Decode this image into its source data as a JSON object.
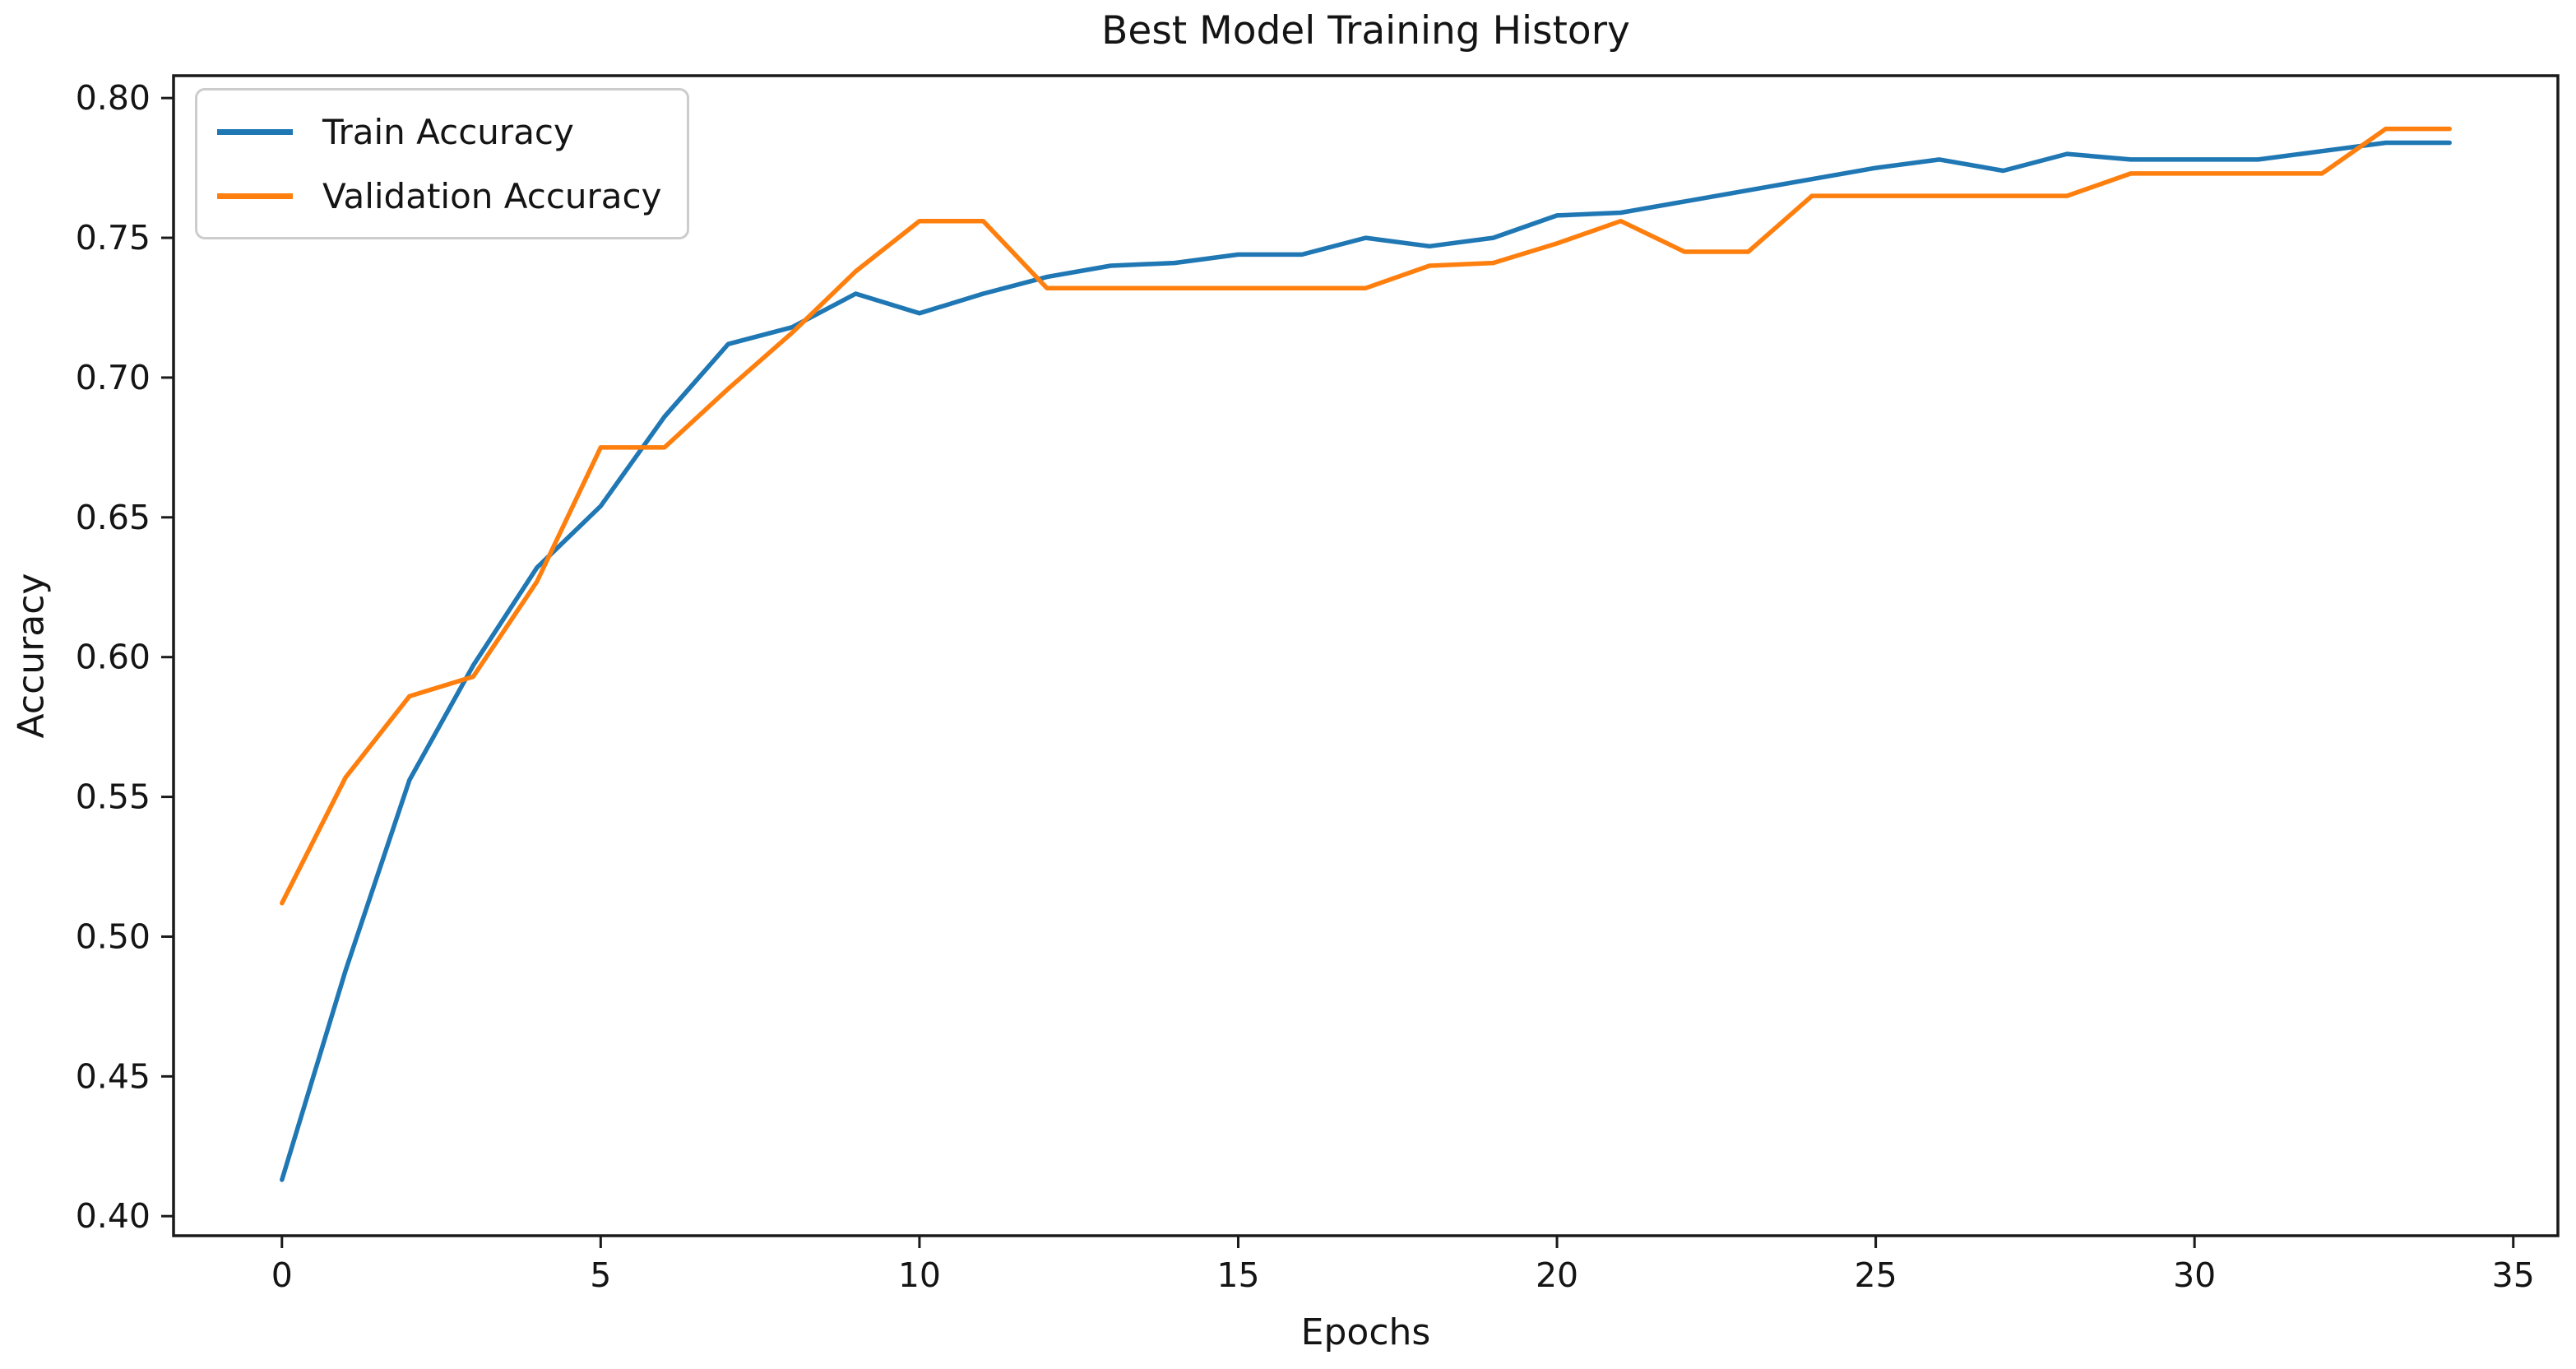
{
  "figure": {
    "title": "Best Model Training History",
    "xlabel": "Epochs",
    "ylabel": "Accuracy"
  },
  "legend": {
    "entries": [
      {
        "label": "Train Accuracy",
        "color": "#1f77b4"
      },
      {
        "label": "Validation Accuracy",
        "color": "#ff7f0e"
      }
    ]
  },
  "chart_data": {
    "type": "line",
    "title": "Best Model Training History",
    "xlabel": "Epochs",
    "ylabel": "Accuracy",
    "grid": false,
    "legend_position": "upper left",
    "xlim": [
      -1.7,
      35.7
    ],
    "ylim": [
      0.393,
      0.808
    ],
    "xticks": [
      0,
      5,
      10,
      15,
      20,
      25,
      30,
      35
    ],
    "yticks": [
      0.4,
      0.45,
      0.5,
      0.55,
      0.6,
      0.65,
      0.7,
      0.75,
      0.8
    ],
    "x": [
      0,
      1,
      2,
      3,
      4,
      5,
      6,
      7,
      8,
      9,
      10,
      11,
      12,
      13,
      14,
      15,
      16,
      17,
      18,
      19,
      20,
      21,
      22,
      23,
      24,
      25,
      26,
      27,
      28,
      29,
      30,
      31,
      32,
      33,
      34
    ],
    "series": [
      {
        "name": "Train Accuracy",
        "color": "#1f77b4",
        "values": [
          0.413,
          0.488,
          0.556,
          0.597,
          0.632,
          0.654,
          0.686,
          0.712,
          0.718,
          0.73,
          0.723,
          0.73,
          0.736,
          0.74,
          0.741,
          0.744,
          0.744,
          0.75,
          0.747,
          0.75,
          0.758,
          0.759,
          0.763,
          0.767,
          0.771,
          0.775,
          0.778,
          0.774,
          0.78,
          0.778,
          0.778,
          0.778,
          0.781,
          0.784,
          0.784
        ]
      },
      {
        "name": "Validation Accuracy",
        "color": "#ff7f0e",
        "values": [
          0.512,
          0.557,
          0.586,
          0.593,
          0.627,
          0.675,
          0.675,
          0.696,
          0.716,
          0.738,
          0.756,
          0.756,
          0.732,
          0.732,
          0.732,
          0.732,
          0.732,
          0.732,
          0.74,
          0.741,
          0.748,
          0.756,
          0.745,
          0.745,
          0.765,
          0.765,
          0.765,
          0.765,
          0.765,
          0.773,
          0.773,
          0.773,
          0.773,
          0.789,
          0.789
        ]
      }
    ]
  }
}
